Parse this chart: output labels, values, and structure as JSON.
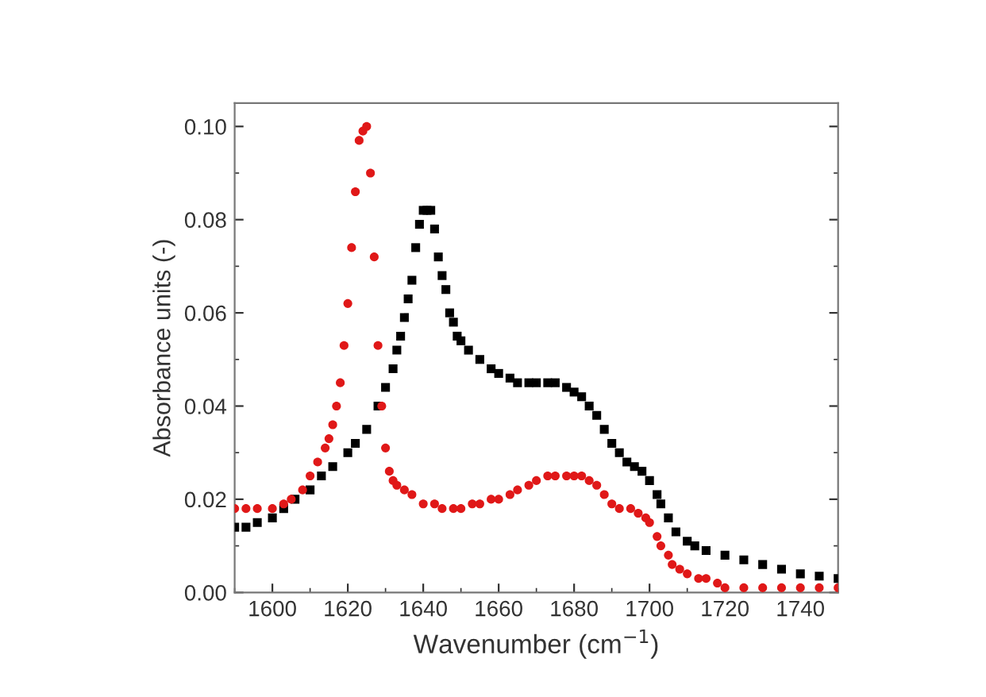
{
  "chart_data": {
    "type": "scatter",
    "xlabel": "Wavenumber (cm$^{−1}$)",
    "ylabel": "Absorbance units (-)",
    "xlim": [
      1590,
      1750
    ],
    "xticks": [
      1600,
      1620,
      1640,
      1660,
      1680,
      1700,
      1720,
      1740
    ],
    "ylim": [
      0,
      0.105
    ],
    "yticks": [
      {
        "value": 0,
        "label": "0.00"
      },
      {
        "value": 0.02,
        "label": "0.02"
      },
      {
        "value": 0.04,
        "label": "0.04"
      },
      {
        "value": 0.06,
        "label": "0.06"
      },
      {
        "value": 0.08,
        "label": "0.08"
      },
      {
        "value": 0.1,
        "label": "0.10"
      }
    ],
    "series": [
      {
        "color": "#000000",
        "marker": "square",
        "x": [
          1590,
          1593,
          1596,
          1600,
          1603,
          1606,
          1610,
          1613,
          1616,
          1620,
          1622,
          1625,
          1628,
          1630,
          1632,
          1633,
          1634,
          1635,
          1636,
          1637,
          1638,
          1639,
          1640,
          1641,
          1642,
          1643,
          1644,
          1645,
          1646,
          1647,
          1648,
          1649,
          1650,
          1652,
          1655,
          1658,
          1660,
          1663,
          1665,
          1668,
          1670,
          1673,
          1675,
          1678,
          1680,
          1682,
          1684,
          1686,
          1688,
          1690,
          1692,
          1694,
          1696,
          1698,
          1700,
          1702,
          1703,
          1705,
          1707,
          1710,
          1712,
          1715,
          1720,
          1725,
          1730,
          1735,
          1740,
          1745,
          1750
        ],
        "values": [
          0.014,
          0.014,
          0.015,
          0.016,
          0.018,
          0.02,
          0.022,
          0.025,
          0.027,
          0.03,
          0.032,
          0.035,
          0.04,
          0.044,
          0.048,
          0.052,
          0.055,
          0.059,
          0.063,
          0.067,
          0.074,
          0.079,
          0.082,
          0.082,
          0.082,
          0.078,
          0.072,
          0.068,
          0.065,
          0.06,
          0.058,
          0.055,
          0.054,
          0.052,
          0.05,
          0.048,
          0.047,
          0.046,
          0.045,
          0.045,
          0.045,
          0.045,
          0.045,
          0.044,
          0.043,
          0.042,
          0.04,
          0.038,
          0.035,
          0.032,
          0.03,
          0.028,
          0.027,
          0.026,
          0.024,
          0.021,
          0.019,
          0.016,
          0.013,
          0.011,
          0.01,
          0.009,
          0.008,
          0.007,
          0.006,
          0.005,
          0.004,
          0.0035,
          0.003
        ]
      },
      {
        "color": "#e01818",
        "marker": "circle",
        "x": [
          1590,
          1593,
          1596,
          1600,
          1603,
          1605,
          1608,
          1610,
          1612,
          1614,
          1615,
          1616,
          1617,
          1618,
          1619,
          1620,
          1621,
          1622,
          1623,
          1624,
          1625,
          1626,
          1627,
          1628,
          1629,
          1630,
          1631,
          1632,
          1633,
          1635,
          1637,
          1640,
          1643,
          1645,
          1648,
          1650,
          1653,
          1655,
          1658,
          1660,
          1663,
          1665,
          1668,
          1670,
          1673,
          1675,
          1678,
          1680,
          1682,
          1684,
          1686,
          1688,
          1690,
          1692,
          1695,
          1697,
          1699,
          1700,
          1702,
          1703,
          1705,
          1706,
          1708,
          1710,
          1713,
          1715,
          1718,
          1720,
          1725,
          1730,
          1735,
          1740,
          1745,
          1750
        ],
        "values": [
          0.018,
          0.018,
          0.018,
          0.018,
          0.019,
          0.02,
          0.022,
          0.025,
          0.028,
          0.031,
          0.033,
          0.036,
          0.04,
          0.045,
          0.053,
          0.062,
          0.074,
          0.086,
          0.097,
          0.099,
          0.1,
          0.09,
          0.072,
          0.053,
          0.04,
          0.031,
          0.026,
          0.024,
          0.023,
          0.022,
          0.021,
          0.019,
          0.019,
          0.018,
          0.018,
          0.018,
          0.019,
          0.019,
          0.02,
          0.02,
          0.021,
          0.022,
          0.023,
          0.024,
          0.025,
          0.025,
          0.025,
          0.025,
          0.025,
          0.024,
          0.023,
          0.021,
          0.019,
          0.018,
          0.018,
          0.017,
          0.016,
          0.015,
          0.012,
          0.01,
          0.008,
          0.006,
          0.005,
          0.004,
          0.003,
          0.003,
          0.002,
          0.001,
          0.001,
          0.001,
          0.001,
          0.001,
          0.001,
          0.001
        ]
      }
    ]
  }
}
